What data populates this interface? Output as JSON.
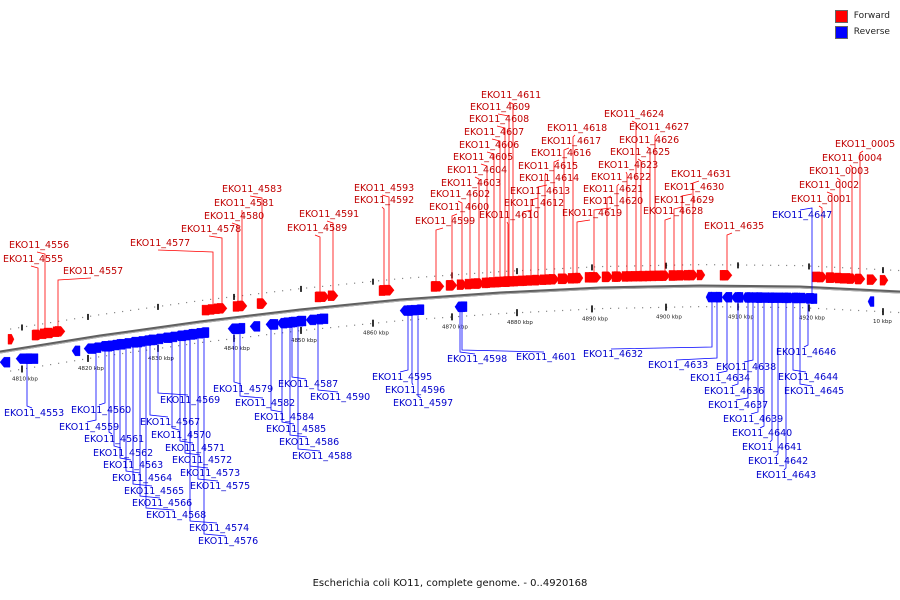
{
  "legend": [
    {
      "label": "Forward",
      "color": "#ff0000"
    },
    {
      "label": "Reverse",
      "color": "#0000ff"
    }
  ],
  "caption": "Escherichia coli KO11, complete genome. - 0..4920168",
  "colors": {
    "forward": "#ff0000",
    "reverse": "#0000ff",
    "backbone": "#808080",
    "forward_label": "#c00000",
    "reverse_label": "#0000cc"
  },
  "scale": {
    "start_kbp": 4804,
    "end_kbp": 4928
  },
  "ticks": [
    "4810 kbp",
    "4820 kbp",
    "4830 kbp",
    "4840 kbp",
    "4850 kbp",
    "4860 kbp",
    "4870 kbp",
    "4880 kbp",
    "4890 kbp",
    "4900 kbp",
    "4910 kbp",
    "4920 kbp",
    "10 kbp"
  ],
  "forward_genes": [
    "EKO11_4555",
    "EKO11_4556",
    "EKO11_4557",
    "EKO11_4577",
    "EKO11_4578",
    "EKO11_4580",
    "EKO11_4581",
    "EKO11_4583",
    "EKO11_4589",
    "EKO11_4591",
    "EKO11_4592",
    "EKO11_4593",
    "EKO11_4599",
    "EKO11_4600",
    "EKO11_4602",
    "EKO11_4603",
    "EKO11_4604",
    "EKO11_4605",
    "EKO11_4606",
    "EKO11_4607",
    "EKO11_4608",
    "EKO11_4609",
    "EKO11_4611",
    "EKO11_4610",
    "EKO11_4612",
    "EKO11_4613",
    "EKO11_4614",
    "EKO11_4615",
    "EKO11_4616",
    "EKO11_4617",
    "EKO11_4618",
    "EKO11_4619",
    "EKO11_4620",
    "EKO11_4621",
    "EKO11_4622",
    "EKO11_4623",
    "EKO11_4624",
    "EKO11_4625",
    "EKO11_4626",
    "EKO11_4627",
    "EKO11_4628",
    "EKO11_4629",
    "EKO11_4630",
    "EKO11_4631",
    "EKO11_4635",
    "EKO11_0001",
    "EKO11_0002",
    "EKO11_0003",
    "EKO11_0004",
    "EKO11_0005"
  ],
  "reverse_genes": [
    "EKO11_4553",
    "EKO11_4560",
    "EKO11_4559",
    "EKO11_4561",
    "EKO11_4562",
    "EKO11_4563",
    "EKO11_4564",
    "EKO11_4565",
    "EKO11_4566",
    "EKO11_4567",
    "EKO11_4568",
    "EKO11_4569",
    "EKO11_4570",
    "EKO11_4571",
    "EKO11_4572",
    "EKO11_4573",
    "EKO11_4574",
    "EKO11_4575",
    "EKO11_4576",
    "EKO11_4579",
    "EKO11_4582",
    "EKO11_4584",
    "EKO11_4585",
    "EKO11_4586",
    "EKO11_4587",
    "EKO11_4588",
    "EKO11_4590",
    "EKO11_4595",
    "EKO11_4596",
    "EKO11_4597",
    "EKO11_4598",
    "EKO11_4601",
    "EKO11_4632",
    "EKO11_4633",
    "EKO11_4634",
    "EKO11_4636",
    "EKO11_4637",
    "EKO11_4638",
    "EKO11_4639",
    "EKO11_4640",
    "EKO11_4641",
    "EKO11_4642",
    "EKO11_4643",
    "EKO11_4644",
    "EKO11_4645",
    "EKO11_4646",
    "EKO11_4647"
  ]
}
